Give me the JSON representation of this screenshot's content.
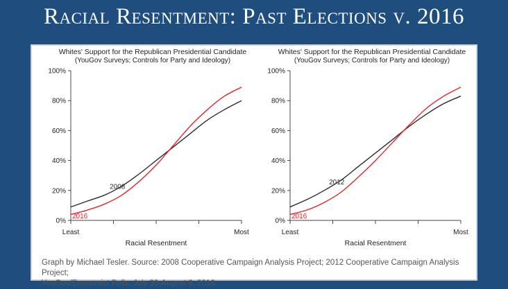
{
  "slide_title": "Racial Resentment: Past Elections v. 2016",
  "source": {
    "line1": "Graph by Michael Tesler. Source: 2008 Cooperative Campaign Analysis Project; 2012 Cooperative Campaign Analysis Project;",
    "line2": "YouGov/Economist Polls, July 30-August 6, 2016."
  },
  "colors": {
    "prior": "#2b2b2b",
    "y2016": "#e8242a",
    "background": "#1f4d7e"
  },
  "chart_data": [
    {
      "type": "line",
      "title": "Whites' Support for the Republican Presidential Candidate",
      "subtitle": "(YouGov Surveys; Controls for Party and Ideology)",
      "xlabel": "Racial Resentment",
      "ylabel": "",
      "x_tick_labels": [
        "Least",
        "Most"
      ],
      "x": [
        0,
        0.1,
        0.2,
        0.3,
        0.4,
        0.5,
        0.6,
        0.7,
        0.8,
        0.9,
        1.0
      ],
      "yticks": [
        "0%",
        "20%",
        "40%",
        "60%",
        "80%",
        "100%"
      ],
      "ylim": [
        0,
        100
      ],
      "series": [
        {
          "name": "2008",
          "label": "2008",
          "values": [
            9,
            13,
            17,
            23,
            31,
            40,
            49,
            58,
            67,
            74,
            80
          ]
        },
        {
          "name": "2016",
          "label": "2016",
          "values": [
            4,
            7,
            11,
            17,
            26,
            37,
            50,
            63,
            74,
            83,
            89
          ]
        }
      ]
    },
    {
      "type": "line",
      "title": "Whites' Support for the Republican Presidential Candidate",
      "subtitle": "(YouGov Surveys; Controls for Party and Ideology)",
      "xlabel": "Racial Resentment",
      "ylabel": "",
      "x_tick_labels": [
        "Least",
        "Most"
      ],
      "x": [
        0,
        0.1,
        0.2,
        0.3,
        0.4,
        0.5,
        0.6,
        0.7,
        0.8,
        0.9,
        1.0
      ],
      "yticks": [
        "0%",
        "20%",
        "40%",
        "60%",
        "80%",
        "100%"
      ],
      "ylim": [
        0,
        100
      ],
      "series": [
        {
          "name": "2012",
          "label": "2012",
          "values": [
            9,
            14,
            20,
            27,
            36,
            45,
            54,
            63,
            71,
            78,
            83
          ]
        },
        {
          "name": "2016",
          "label": "2016",
          "values": [
            4,
            7,
            12,
            19,
            29,
            40,
            52,
            64,
            75,
            83,
            89
          ]
        }
      ]
    }
  ]
}
